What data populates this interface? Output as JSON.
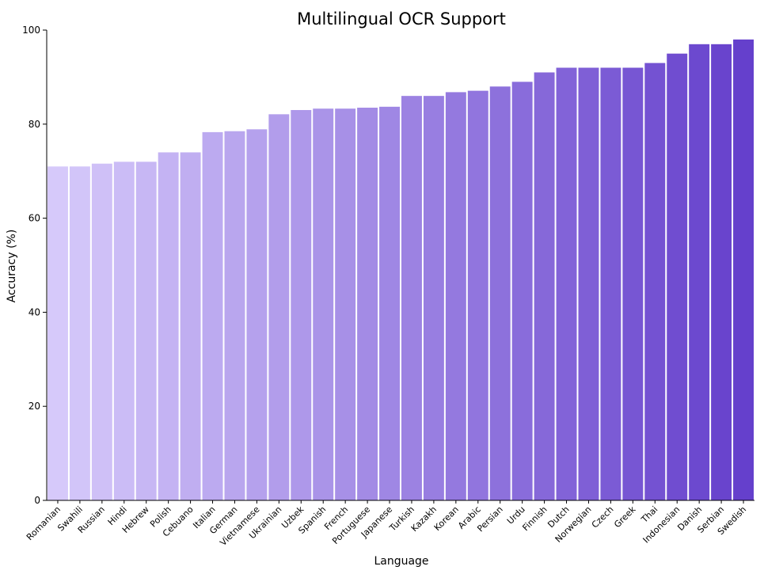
{
  "chart_data": {
    "type": "bar",
    "title": "Multilingual OCR Support",
    "xlabel": "Language",
    "ylabel": "Accuracy (%)",
    "ylim": [
      0,
      100
    ],
    "yticks": [
      0,
      20,
      40,
      60,
      80,
      100
    ],
    "grid": false,
    "color_start": "#d6c9fa",
    "color_end": "#6540cc",
    "categories": [
      "Romanian",
      "Swahili",
      "Russian",
      "Hindi",
      "Hebrew",
      "Polish",
      "Cebuano",
      "Italian",
      "German",
      "Vietnamese",
      "Ukrainian",
      "Uzbek",
      "Spanish",
      "French",
      "Portuguese",
      "Japanese",
      "Turkish",
      "Kazakh",
      "Korean",
      "Arabic",
      "Persian",
      "Urdu",
      "Finnish",
      "Dutch",
      "Norwegian",
      "Czech",
      "Greek",
      "Thai",
      "Indonesian",
      "Danish",
      "Serbian",
      "Swedish"
    ],
    "values": [
      71,
      71,
      71.6,
      72,
      72,
      74,
      74,
      78.3,
      78.5,
      78.9,
      82.1,
      83,
      83.3,
      83.3,
      83.5,
      83.7,
      86,
      86,
      86.8,
      87.1,
      88,
      89,
      91,
      92,
      92,
      92,
      92,
      93,
      95,
      97,
      97,
      98
    ]
  }
}
